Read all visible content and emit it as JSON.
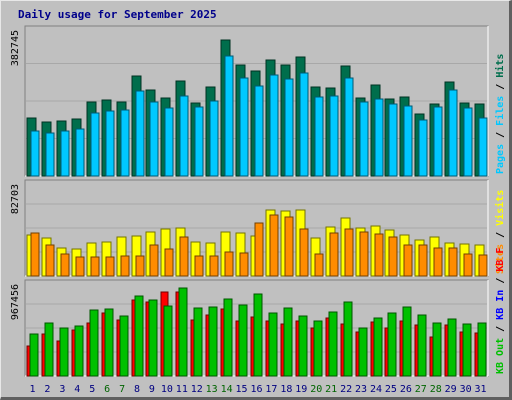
{
  "title": "Daily usage for September 2025",
  "colors": {
    "hits": "#006e4c",
    "files": "#00c8ff",
    "pages": "#00c8ff",
    "visits": "#ffff00",
    "sites": "#ff8c00",
    "kb_f": "#ff0000",
    "kb_in": "#0000ff",
    "kb_out": "#00c000",
    "day_weekday": "#000080",
    "day_weekend": "#006400"
  },
  "chart_data": [
    {
      "type": "bar",
      "name": "hits-files-pages",
      "y_max_label": "382745",
      "y_max": 382745,
      "legend": [
        {
          "text": "Hits",
          "color": "#006e4c"
        },
        {
          "text": "Files",
          "color": "#00c8ff"
        },
        {
          "text": "Pages",
          "color": "#00c8ff"
        }
      ],
      "categories": [
        "1",
        "2",
        "3",
        "4",
        "5",
        "6",
        "7",
        "8",
        "9",
        "10",
        "11",
        "12",
        "13",
        "14",
        "15",
        "16",
        "17",
        "18",
        "19",
        "20",
        "21",
        "22",
        "23",
        "24",
        "25",
        "26",
        "27",
        "28",
        "29",
        "30",
        "31"
      ],
      "series": [
        {
          "name": "Hits",
          "values": [
            152000,
            141000,
            145000,
            149000,
            195000,
            198000,
            194000,
            261000,
            225000,
            204000,
            249000,
            191000,
            233000,
            356000,
            290000,
            275000,
            304000,
            292000,
            311000,
            233000,
            232000,
            288000,
            205000,
            238000,
            201000,
            208000,
            162000,
            189000,
            247000,
            191000,
            188000
          ]
        },
        {
          "name": "Files",
          "values": [
            118000,
            112000,
            118000,
            123000,
            165000,
            170000,
            173000,
            223000,
            195000,
            178000,
            209000,
            181000,
            197000,
            314000,
            256000,
            237000,
            266000,
            254000,
            271000,
            207000,
            209000,
            256000,
            194000,
            203000,
            188000,
            183000,
            147000,
            181000,
            226000,
            179000,
            152000
          ]
        }
      ]
    },
    {
      "type": "bar",
      "name": "visits-sites",
      "y_max_label": "82703",
      "y_max": 82703,
      "legend": [
        {
          "text": "Visits",
          "color": "#ffff00"
        },
        {
          "text": "Sites",
          "color": "#ff8c00"
        }
      ],
      "categories": [
        "1",
        "2",
        "3",
        "4",
        "5",
        "6",
        "7",
        "8",
        "9",
        "10",
        "11",
        "12",
        "13",
        "14",
        "15",
        "16",
        "17",
        "18",
        "19",
        "20",
        "21",
        "22",
        "23",
        "24",
        "25",
        "26",
        "27",
        "28",
        "29",
        "30",
        "31"
      ],
      "series": [
        {
          "name": "Visits",
          "values": [
            37000,
            34000,
            25000,
            24000,
            30000,
            31000,
            35000,
            36000,
            40000,
            42000,
            43000,
            31000,
            30000,
            40000,
            39000,
            36000,
            59000,
            58000,
            59000,
            34000,
            44000,
            52000,
            43000,
            45000,
            41000,
            37000,
            32000,
            35000,
            30000,
            29000,
            28000
          ]
        },
        {
          "name": "Sites",
          "values": [
            39000,
            28000,
            20000,
            17000,
            17000,
            17000,
            18000,
            18000,
            28000,
            24000,
            35000,
            18000,
            18000,
            22000,
            21000,
            48000,
            55000,
            53000,
            42000,
            20000,
            39000,
            42000,
            40000,
            38000,
            35000,
            28000,
            28000,
            25000,
            25000,
            20000,
            19000
          ]
        }
      ]
    },
    {
      "type": "bar",
      "name": "kbytes",
      "y_max_label": "967456",
      "y_max": 967456,
      "legend": [
        {
          "text": "KB F",
          "color": "#ff0000"
        },
        {
          "text": "KB In",
          "color": "#0000ff"
        },
        {
          "text": "KB Out",
          "color": "#00c000"
        }
      ],
      "categories": [
        "1",
        "2",
        "3",
        "4",
        "5",
        "6",
        "7",
        "8",
        "9",
        "10",
        "11",
        "12",
        "13",
        "14",
        "15",
        "16",
        "17",
        "18",
        "19",
        "20",
        "21",
        "22",
        "23",
        "24",
        "25",
        "26",
        "27",
        "28",
        "29",
        "30",
        "31"
      ],
      "series": [
        {
          "name": "KB F",
          "values": [
            320000,
            440000,
            370000,
            480000,
            560000,
            660000,
            590000,
            800000,
            780000,
            880000,
            880000,
            590000,
            640000,
            700000,
            580000,
            620000,
            580000,
            550000,
            580000,
            510000,
            610000,
            550000,
            460000,
            570000,
            510000,
            580000,
            540000,
            410000,
            540000,
            460000,
            450000
          ]
        },
        {
          "name": "KB Out",
          "values": [
            440000,
            560000,
            500000,
            530000,
            690000,
            700000,
            630000,
            840000,
            800000,
            740000,
            930000,
            720000,
            730000,
            810000,
            750000,
            860000,
            660000,
            710000,
            630000,
            580000,
            670000,
            780000,
            510000,
            610000,
            660000,
            730000,
            640000,
            560000,
            600000,
            550000,
            560000
          ]
        }
      ]
    }
  ]
}
